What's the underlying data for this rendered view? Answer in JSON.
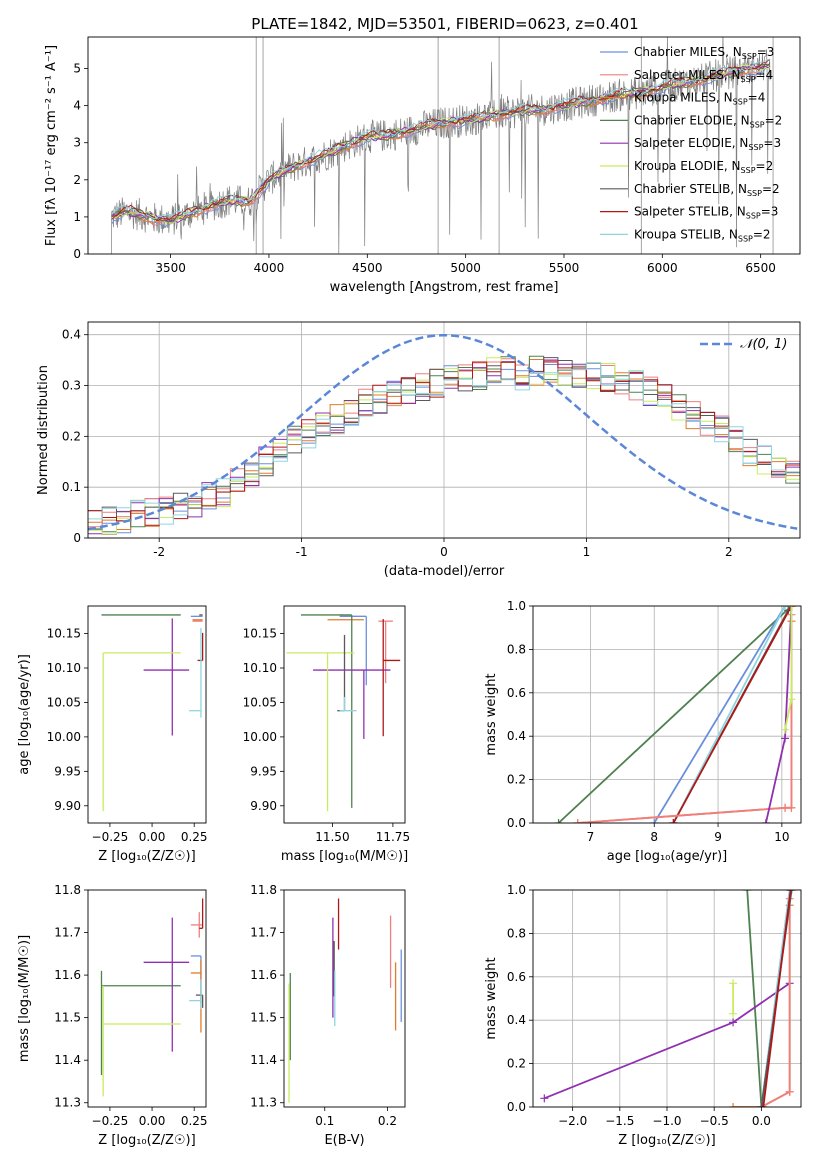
{
  "figure": {
    "title": "PLATE=1842, MJD=53501, FIBERID=0623, z=0.401"
  },
  "colors": {
    "chabrier_miles": "#6a8fdd",
    "salpeter_miles": "#ef7f7f",
    "kroupa_miles": "#e07b2e",
    "chabrier_elodie": "#4f8050",
    "salpeter_elodie": "#9030b0",
    "kroupa_elodie": "#c8ec60",
    "chabrier_stelib": "#5a5a5a",
    "salpeter_stelib": "#b01818",
    "kroupa_stelib": "#8fd5e0",
    "data": "#7f7f7f",
    "gauss": "#5b87d8"
  },
  "chart_data": [
    {
      "id": "spectrum",
      "type": "line",
      "xlabel": "wavelength [Angstrom, rest frame]",
      "ylabel": "Flux [f_λ 10⁻¹⁷ erg cm⁻² s⁻¹ A⁻¹]",
      "xlim": [
        3080,
        6700
      ],
      "ylim": [
        0,
        5.85
      ],
      "xticks": [
        3500,
        4000,
        4500,
        5000,
        5500,
        6000,
        6500
      ],
      "yticks": [
        0,
        1,
        2,
        3,
        4,
        5
      ],
      "grid": false,
      "legend_position": "top-right",
      "legend": [
        "Chabrier MILES, N_SSP=3",
        "Salpeter MILES, N_SSP=4",
        "Kroupa MILES, N_SSP=4",
        "Chabrier ELODIE, N_SSP=2",
        "Salpeter ELODIE, N_SSP=3",
        "Kroupa ELODIE, N_SSP=2",
        "Chabrier STELIB, N_SSP=2",
        "Salpeter STELIB, N_SSP=3",
        "Kroupa STELIB, N_SSP=2"
      ],
      "model_continuum": {
        "x": [
          3200,
          3280,
          3350,
          3420,
          3500,
          3600,
          3700,
          3800,
          3900,
          3950,
          4000,
          4100,
          4200,
          4300,
          4400,
          4500,
          4600,
          4700,
          4800,
          4900,
          5000,
          5100,
          5200,
          5300,
          5400,
          5500,
          5600,
          5700,
          5800,
          5900,
          6000,
          6100,
          6200,
          6300,
          6400,
          6550
        ],
        "y": [
          1.0,
          1.15,
          1.05,
          0.95,
          0.9,
          1.1,
          1.3,
          1.45,
          1.4,
          1.7,
          2.0,
          2.3,
          2.5,
          2.7,
          2.95,
          3.15,
          3.2,
          3.3,
          3.45,
          3.55,
          3.6,
          3.7,
          3.8,
          3.85,
          3.9,
          4.0,
          4.1,
          4.2,
          4.3,
          4.35,
          4.5,
          4.6,
          4.7,
          4.85,
          4.95,
          5.1
        ]
      }
    },
    {
      "id": "residuals",
      "type": "histogram",
      "xlabel": "(data-model)/error",
      "ylabel": "Normed distribution",
      "xlim": [
        -2.5,
        2.5
      ],
      "ylim": [
        0,
        0.425
      ],
      "xticks": [
        -2,
        -1,
        0,
        1,
        2
      ],
      "yticks": [
        0.0,
        0.1,
        0.2,
        0.3,
        0.4
      ],
      "grid": true,
      "legend_position": "top-right",
      "legend": [
        "𝒩(0, 1)"
      ],
      "bin_width": 0.1,
      "bin_start": -2.5,
      "envelope": [
        0.03,
        0.035,
        0.04,
        0.045,
        0.05,
        0.055,
        0.06,
        0.07,
        0.08,
        0.09,
        0.11,
        0.13,
        0.15,
        0.17,
        0.19,
        0.205,
        0.22,
        0.235,
        0.25,
        0.265,
        0.275,
        0.285,
        0.29,
        0.3,
        0.305,
        0.31,
        0.315,
        0.32,
        0.33,
        0.33,
        0.32,
        0.33,
        0.335,
        0.33,
        0.325,
        0.32,
        0.315,
        0.31,
        0.3,
        0.29,
        0.275,
        0.26,
        0.245,
        0.23,
        0.21,
        0.19,
        0.17,
        0.155,
        0.14,
        0.125,
        0.11,
        0.1,
        0.095,
        0.09,
        0.085,
        0.08,
        0.075,
        0.07,
        0.065,
        0.06
      ],
      "gauss": {
        "mu": 0,
        "sigma": 1
      }
    },
    {
      "id": "age-vs-Z",
      "type": "scatter",
      "xlabel": "Z [log₁₀(Z/Z☉)]",
      "ylabel": "age  [log₁₀(age/yr)]",
      "xlim": [
        -0.38,
        0.32
      ],
      "ylim": [
        9.875,
        10.19
      ],
      "xticks": [
        -0.25,
        0.0,
        0.25
      ],
      "xticklabels": [
        "−0.25",
        "0.00",
        "0.25"
      ],
      "yticks": [
        9.9,
        9.95,
        10.0,
        10.05,
        10.1,
        10.15
      ],
      "yticklabels": [
        "9.90",
        "9.95",
        "10.00",
        "10.05",
        "10.10",
        "10.15"
      ],
      "grid": false,
      "points": [
        {
          "c": "chabrier_miles",
          "x": 0.28,
          "xl": 0.05,
          "xh": 0.02,
          "y": 10.175,
          "yl": 0.0,
          "yh": 0.0
        },
        {
          "c": "salpeter_miles",
          "x": 0.29,
          "xl": 0.05,
          "xh": 0.01,
          "y": 10.168,
          "yl": 0.0,
          "yh": 0.0
        },
        {
          "c": "kroupa_miles",
          "x": 0.29,
          "xl": 0.05,
          "xh": 0.01,
          "y": 10.17,
          "yl": 0.0,
          "yh": 0.0
        },
        {
          "c": "chabrier_elodie",
          "x": -0.3,
          "xl": 0.0,
          "xh": 0.47,
          "y": 10.177,
          "yl": 0.0,
          "yh": 0.0
        },
        {
          "c": "salpeter_elodie",
          "x": 0.12,
          "xl": 0.17,
          "xh": 0.1,
          "y": 10.097,
          "yl": 0.095,
          "yh": 0.075
        },
        {
          "c": "kroupa_elodie",
          "x": -0.29,
          "xl": 0.0,
          "xh": 0.46,
          "y": 10.122,
          "yl": 0.23,
          "yh": 0.0
        },
        {
          "c": "chabrier_stelib",
          "x": 0.3,
          "xl": 0.02,
          "xh": 0.0,
          "y": 10.177,
          "yl": 0.0,
          "yh": 0.0
        },
        {
          "c": "salpeter_stelib",
          "x": 0.3,
          "xl": 0.03,
          "xh": 0.0,
          "y": 10.111,
          "yl": 0.0,
          "yh": 0.04
        },
        {
          "c": "kroupa_stelib",
          "x": 0.29,
          "xl": 0.07,
          "xh": 0.0,
          "y": 10.038,
          "yl": 0.01,
          "yh": 0.12
        }
      ]
    },
    {
      "id": "age-vs-mass",
      "type": "scatter",
      "xlabel": "mass [log₁₀(M/M☉)]",
      "ylabel": "",
      "xlim": [
        11.3,
        11.8
      ],
      "ylim": [
        9.875,
        10.19
      ],
      "xticks": [
        11.5,
        11.75
      ],
      "xticklabels": [
        "11.50",
        "11.75"
      ],
      "yticks": [
        9.9,
        9.95,
        10.0,
        10.05,
        10.1,
        10.15
      ],
      "yticklabels": [
        "9.90",
        "9.95",
        "10.00",
        "10.05",
        "10.10",
        "10.15"
      ],
      "grid": false,
      "points": [
        {
          "c": "chabrier_miles",
          "x": 11.64,
          "xl": 0.11,
          "xh": 0.0,
          "y": 10.175,
          "yl": 0.1,
          "yh": 0.0
        },
        {
          "c": "salpeter_miles",
          "x": 11.72,
          "xl": 0.03,
          "xh": 0.03,
          "y": 10.168,
          "yl": 0.09,
          "yh": 0.0
        },
        {
          "c": "kroupa_miles",
          "x": 11.6,
          "xl": 0.12,
          "xh": 0.03,
          "y": 10.17,
          "yl": 0.0,
          "yh": 0.0
        },
        {
          "c": "chabrier_elodie",
          "x": 11.58,
          "xl": 0.21,
          "xh": 0.0,
          "y": 10.177,
          "yl": 0.28,
          "yh": 0.0
        },
        {
          "c": "salpeter_elodie",
          "x": 11.63,
          "xl": 0.21,
          "xh": 0.11,
          "y": 10.097,
          "yl": 0.1,
          "yh": 0.0
        },
        {
          "c": "kroupa_elodie",
          "x": 11.48,
          "xl": 0.17,
          "xh": 0.11,
          "y": 10.122,
          "yl": 0.23,
          "yh": 0.0
        },
        {
          "c": "chabrier_stelib",
          "x": 11.55,
          "xl": 0.03,
          "xh": 0.0,
          "y": 10.038,
          "yl": 0.0,
          "yh": 0.11
        },
        {
          "c": "salpeter_stelib",
          "x": 11.71,
          "xl": 0.0,
          "xh": 0.07,
          "y": 10.111,
          "yl": 0.11,
          "yh": 0.06
        },
        {
          "c": "kroupa_stelib",
          "x": 11.55,
          "xl": 0.02,
          "xh": 0.05,
          "y": 10.038,
          "yl": 0.0,
          "yh": 0.02
        }
      ]
    },
    {
      "id": "weight-vs-age",
      "type": "line",
      "xlabel": "age  [log₁₀(age/yr)]",
      "ylabel": "mass weight",
      "xlim": [
        6.1,
        10.3
      ],
      "ylim": [
        0.0,
        1.0
      ],
      "xticks": [
        7,
        8,
        9,
        10
      ],
      "yticks": [
        0.0,
        0.2,
        0.4,
        0.6,
        0.8,
        1.0
      ],
      "yticklabels": [
        "0.0",
        "0.2",
        "0.4",
        "0.6",
        "0.8",
        "1.0"
      ],
      "grid": true,
      "series": [
        {
          "c": "chabrier_elodie",
          "x": [
            6.5,
            10.15
          ],
          "y": [
            0.0,
            1.0
          ]
        },
        {
          "c": "chabrier_miles",
          "x": [
            8.0,
            10.05,
            10.15
          ],
          "y": [
            0.0,
            1.0,
            1.0
          ]
        },
        {
          "c": "chabrier_stelib",
          "x": [
            8.3,
            10.1,
            10.15
          ],
          "y": [
            0.0,
            0.98,
            1.0
          ]
        },
        {
          "c": "kroupa_stelib",
          "x": [
            8.3,
            10.05,
            10.15
          ],
          "y": [
            0.0,
            1.0,
            1.0
          ]
        },
        {
          "c": "salpeter_stelib",
          "x": [
            8.3,
            10.15
          ],
          "y": [
            0.0,
            1.0
          ]
        },
        {
          "c": "kroupa_miles",
          "x": [
            6.8,
            10.05,
            10.15,
            10.15
          ],
          "y": [
            0.0,
            0.07,
            0.07,
            0.93
          ]
        },
        {
          "c": "salpeter_miles",
          "x": [
            6.8,
            10.05,
            10.15,
            10.15
          ],
          "y": [
            0.0,
            0.07,
            0.07,
            0.96
          ]
        },
        {
          "c": "salpeter_elodie",
          "x": [
            9.75,
            10.05,
            10.15
          ],
          "y": [
            0.0,
            0.39,
            1.0
          ]
        },
        {
          "c": "kroupa_elodie",
          "x": [
            10.05,
            10.15,
            10.15
          ],
          "y": [
            0.43,
            0.57,
            1.0
          ]
        }
      ]
    },
    {
      "id": "mass-vs-Z",
      "type": "scatter",
      "xlabel": "Z [log₁₀(Z/Z☉)]",
      "ylabel": "mass [log₁₀(M/M☉)]",
      "xlim": [
        -0.38,
        0.32
      ],
      "ylim": [
        11.29,
        11.8
      ],
      "xticks": [
        -0.25,
        0.0,
        0.25
      ],
      "xticklabels": [
        "−0.25",
        "0.00",
        "0.25"
      ],
      "yticks": [
        11.3,
        11.4,
        11.5,
        11.6,
        11.7,
        11.8
      ],
      "yticklabels": [
        "11.3",
        "11.4",
        "11.5",
        "11.6",
        "11.7",
        "11.8"
      ],
      "grid": false,
      "points": [
        {
          "c": "chabrier_miles",
          "x": 0.29,
          "xl": 0.06,
          "xh": 0.0,
          "y": 11.645,
          "yl": 0.11,
          "yh": 0.0
        },
        {
          "c": "salpeter_miles",
          "x": 0.28,
          "xl": 0.05,
          "xh": 0.02,
          "y": 11.718,
          "yl": 0.03,
          "yh": 0.03
        },
        {
          "c": "kroupa_miles",
          "x": 0.29,
          "xl": 0.06,
          "xh": 0.0,
          "y": 11.605,
          "yl": 0.14,
          "yh": 0.03
        },
        {
          "c": "chabrier_elodie",
          "x": -0.3,
          "xl": 0.0,
          "xh": 0.47,
          "y": 11.575,
          "yl": 0.21,
          "yh": 0.035
        },
        {
          "c": "salpeter_elodie",
          "x": 0.12,
          "xl": 0.17,
          "xh": 0.1,
          "y": 11.63,
          "yl": 0.21,
          "yh": 0.105
        },
        {
          "c": "kroupa_elodie",
          "x": -0.29,
          "xl": 0.0,
          "xh": 0.46,
          "y": 11.485,
          "yl": 0.17,
          "yh": 0.09
        },
        {
          "c": "chabrier_stelib",
          "x": 0.3,
          "xl": 0.04,
          "xh": 0.0,
          "y": 11.553,
          "yl": 0.03,
          "yh": 0.0
        },
        {
          "c": "salpeter_stelib",
          "x": 0.3,
          "xl": 0.02,
          "xh": 0.0,
          "y": 11.71,
          "yl": 0.0,
          "yh": 0.07
        },
        {
          "c": "kroupa_stelib",
          "x": 0.29,
          "xl": 0.07,
          "xh": 0.0,
          "y": 11.54,
          "yl": 0.02,
          "yh": 0.05
        }
      ]
    },
    {
      "id": "mass-vs-EBV",
      "type": "scatter",
      "xlabel": "E(B-V)",
      "ylabel": "",
      "xlim": [
        0.035,
        0.228
      ],
      "ylim": [
        11.29,
        11.8
      ],
      "xticks": [
        0.1,
        0.2
      ],
      "xticklabels": [
        "0.1",
        "0.2"
      ],
      "yticks": [
        11.3,
        11.4,
        11.5,
        11.6,
        11.7,
        11.8
      ],
      "yticklabels": [
        "11.3",
        "11.4",
        "11.5",
        "11.6",
        "11.7",
        "11.8"
      ],
      "grid": false,
      "points": [
        {
          "c": "chabrier_miles",
          "x": 0.222,
          "xl": 0.0,
          "xh": 0.0,
          "y": 11.6,
          "yl": 0.11,
          "yh": 0.06
        },
        {
          "c": "salpeter_miles",
          "x": 0.205,
          "xl": 0.0,
          "xh": 0.0,
          "y": 11.67,
          "yl": 0.1,
          "yh": 0.07
        },
        {
          "c": "kroupa_miles",
          "x": 0.213,
          "xl": 0.0,
          "xh": 0.0,
          "y": 11.55,
          "yl": 0.08,
          "yh": 0.08
        },
        {
          "c": "chabrier_elodie",
          "x": 0.045,
          "xl": 0.0,
          "xh": 0.0,
          "y": 11.53,
          "yl": 0.13,
          "yh": 0.075
        },
        {
          "c": "salpeter_elodie",
          "x": 0.113,
          "xl": 0.0,
          "xh": 0.0,
          "y": 11.63,
          "yl": 0.13,
          "yh": 0.105
        },
        {
          "c": "kroupa_elodie",
          "x": 0.043,
          "xl": 0.0,
          "xh": 0.0,
          "y": 11.45,
          "yl": 0.15,
          "yh": 0.13
        },
        {
          "c": "chabrier_stelib",
          "x": 0.115,
          "xl": 0.0,
          "xh": 0.0,
          "y": 11.6,
          "yl": 0.05,
          "yh": 0.08
        },
        {
          "c": "salpeter_stelib",
          "x": 0.122,
          "xl": 0.0,
          "xh": 0.0,
          "y": 11.72,
          "yl": 0.06,
          "yh": 0.06
        },
        {
          "c": "kroupa_stelib",
          "x": 0.116,
          "xl": 0.0,
          "xh": 0.0,
          "y": 11.55,
          "yl": 0.07,
          "yh": 0.06
        }
      ]
    },
    {
      "id": "weight-vs-Z",
      "type": "line",
      "xlabel": "Z [log₁₀(Z/Z☉)]",
      "ylabel": "mass weight",
      "xlim": [
        -2.42,
        0.42
      ],
      "ylim": [
        0.0,
        1.0
      ],
      "xticks": [
        -2.0,
        -1.5,
        -1.0,
        -0.5,
        0.0,
        0.5
      ],
      "xticklabels": [
        "−2.0",
        "−1.5",
        "−1.0",
        "−0.5",
        "0.0",
        "0.5"
      ],
      "yticks": [
        0.0,
        0.2,
        0.4,
        0.6,
        0.8,
        1.0
      ],
      "yticklabels": [
        "0.0",
        "0.2",
        "0.4",
        "0.6",
        "0.8",
        "1.0"
      ],
      "grid": true,
      "series": [
        {
          "c": "chabrier_elodie",
          "x": [
            -0.15,
            0.0
          ],
          "y": [
            1.0,
            0.0
          ]
        },
        {
          "c": "salpeter_elodie",
          "x": [
            -2.3,
            -0.3,
            0.3
          ],
          "y": [
            0.04,
            0.39,
            0.57
          ]
        },
        {
          "c": "kroupa_elodie",
          "x": [
            -0.3,
            -0.3
          ],
          "y": [
            0.43,
            0.57
          ]
        },
        {
          "c": "kroupa_miles",
          "x": [
            -0.3,
            0.0,
            0.3,
            0.3
          ],
          "y": [
            0.0,
            0.0,
            0.07,
            0.93
          ]
        },
        {
          "c": "salpeter_miles",
          "x": [
            0.0,
            0.3,
            0.3
          ],
          "y": [
            0.0,
            0.07,
            0.96
          ]
        },
        {
          "c": "chabrier_miles",
          "x": [
            0.0,
            0.3
          ],
          "y": [
            0.0,
            1.0
          ]
        },
        {
          "c": "kroupa_stelib",
          "x": [
            0.0,
            0.3
          ],
          "y": [
            0.0,
            1.0
          ]
        },
        {
          "c": "chabrier_stelib",
          "x": [
            0.0,
            0.32
          ],
          "y": [
            0.0,
            1.0
          ]
        },
        {
          "c": "salpeter_stelib",
          "x": [
            0.02,
            0.31
          ],
          "y": [
            0.0,
            1.0
          ]
        }
      ]
    }
  ]
}
